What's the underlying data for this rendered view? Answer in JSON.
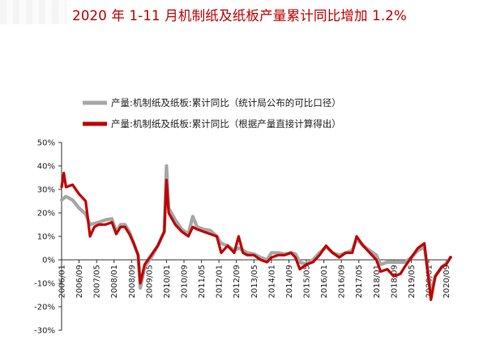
{
  "chart_data": {
    "type": "line",
    "title": "2020 年 1-11 月机制纸及纸板产量累计同比增加 1.2%",
    "ylim": [
      -30,
      50
    ],
    "yticks": [
      -30,
      -20,
      -10,
      0,
      10,
      20,
      30,
      40,
      50
    ],
    "ytick_labels": [
      "-30%",
      "-20%",
      "-10%",
      "0%",
      "10%",
      "20%",
      "30%",
      "40%",
      "50%"
    ],
    "xlim": [
      "2006-01",
      "2020-11"
    ],
    "xtick_labels": [
      "2006/01",
      "2006/09",
      "2007/05",
      "2008/01",
      "2008/09",
      "2009/05",
      "2010/01",
      "2010/09",
      "2011/05",
      "2012/01",
      "2012/09",
      "2013/05",
      "2014/01",
      "2014/09",
      "2015/05",
      "2016/01",
      "2016/09",
      "2017/05",
      "2018/01",
      "2018/09",
      "2019/05",
      "2020/01",
      "2020/09"
    ],
    "grid": false,
    "legend_position": "top-center",
    "series": [
      {
        "name": "产量:机制纸及纸板:累计同比（统计局公布的可比口径）",
        "color": "#a6a6a6",
        "points": [
          [
            "2006-01",
            25.5
          ],
          [
            "2006-03",
            27
          ],
          [
            "2006-06",
            25.5
          ],
          [
            "2006-09",
            22
          ],
          [
            "2006-12",
            19.5
          ],
          [
            "2007-02",
            15
          ],
          [
            "2007-04",
            15.5
          ],
          [
            "2007-06",
            16
          ],
          [
            "2007-09",
            17
          ],
          [
            "2007-12",
            17.5
          ],
          [
            "2008-02",
            12
          ],
          [
            "2008-04",
            15
          ],
          [
            "2008-06",
            15
          ],
          [
            "2008-08",
            12
          ],
          [
            "2008-10",
            7
          ],
          [
            "2008-12",
            2
          ],
          [
            "2009-01",
            -12
          ],
          [
            "2009-03",
            -3
          ],
          [
            "2009-06",
            1
          ],
          [
            "2009-09",
            6
          ],
          [
            "2009-11",
            10
          ],
          [
            "2009-12",
            12
          ],
          [
            "2010-01",
            40
          ],
          [
            "2010-02",
            22
          ],
          [
            "2010-05",
            17
          ],
          [
            "2010-08",
            13
          ],
          [
            "2010-11",
            11
          ],
          [
            "2011-01",
            18.5
          ],
          [
            "2011-03",
            14
          ],
          [
            "2011-06",
            13
          ],
          [
            "2011-09",
            12.5
          ],
          [
            "2011-12",
            10
          ],
          [
            "2012-02",
            7
          ],
          [
            "2012-05",
            6
          ],
          [
            "2012-08",
            4
          ],
          [
            "2012-10",
            5
          ],
          [
            "2012-12",
            4
          ],
          [
            "2013-02",
            3
          ],
          [
            "2013-05",
            2.5
          ],
          [
            "2013-08",
            1
          ],
          [
            "2013-11",
            0
          ],
          [
            "2014-01",
            3
          ],
          [
            "2014-04",
            3
          ],
          [
            "2014-07",
            2.5
          ],
          [
            "2014-10",
            3
          ],
          [
            "2014-12",
            2.5
          ],
          [
            "2015-02",
            -1
          ],
          [
            "2015-05",
            -2
          ],
          [
            "2015-08",
            0
          ],
          [
            "2015-11",
            3
          ],
          [
            "2016-02",
            5.5
          ],
          [
            "2016-05",
            3
          ],
          [
            "2016-08",
            2
          ],
          [
            "2016-11",
            3
          ],
          [
            "2017-02",
            4
          ],
          [
            "2017-04",
            9
          ],
          [
            "2017-07",
            6
          ],
          [
            "2017-10",
            4
          ],
          [
            "2018-01",
            2
          ],
          [
            "2018-03",
            -2
          ],
          [
            "2018-06",
            -1
          ],
          [
            "2018-09",
            -1
          ],
          [
            "2018-12",
            -1
          ],
          [
            "2019-02",
            -1
          ],
          [
            "2019-05",
            1
          ],
          [
            "2019-08",
            4
          ],
          [
            "2019-11",
            5.5
          ],
          [
            "2020-02",
            -14
          ],
          [
            "2020-04",
            -7
          ],
          [
            "2020-07",
            -3
          ],
          [
            "2020-09",
            -1.5
          ],
          [
            "2020-11",
            1
          ]
        ]
      },
      {
        "name": "产量:机制纸及纸板:累计同比（根据产量直接计算得出）",
        "color": "#c00000",
        "points": [
          [
            "2006-01",
            31
          ],
          [
            "2006-02",
            37
          ],
          [
            "2006-03",
            31
          ],
          [
            "2006-06",
            32
          ],
          [
            "2006-09",
            28
          ],
          [
            "2006-12",
            25
          ],
          [
            "2007-02",
            10
          ],
          [
            "2007-04",
            14
          ],
          [
            "2007-06",
            15
          ],
          [
            "2007-09",
            15
          ],
          [
            "2007-12",
            16
          ],
          [
            "2008-02",
            11
          ],
          [
            "2008-04",
            14
          ],
          [
            "2008-06",
            14
          ],
          [
            "2008-08",
            11
          ],
          [
            "2008-10",
            7
          ],
          [
            "2008-12",
            2
          ],
          [
            "2009-01",
            -10
          ],
          [
            "2009-03",
            -2
          ],
          [
            "2009-06",
            2
          ],
          [
            "2009-09",
            6
          ],
          [
            "2009-11",
            10
          ],
          [
            "2009-12",
            12
          ],
          [
            "2010-01",
            34
          ],
          [
            "2010-02",
            20
          ],
          [
            "2010-05",
            15
          ],
          [
            "2010-08",
            12
          ],
          [
            "2010-11",
            10
          ],
          [
            "2011-01",
            14
          ],
          [
            "2011-03",
            13
          ],
          [
            "2011-06",
            12
          ],
          [
            "2011-09",
            11
          ],
          [
            "2011-12",
            10
          ],
          [
            "2012-02",
            3
          ],
          [
            "2012-05",
            6
          ],
          [
            "2012-08",
            3
          ],
          [
            "2012-10",
            10
          ],
          [
            "2012-12",
            3
          ],
          [
            "2013-02",
            2
          ],
          [
            "2013-05",
            2
          ],
          [
            "2013-08",
            0
          ],
          [
            "2013-11",
            -1
          ],
          [
            "2014-01",
            1
          ],
          [
            "2014-04",
            2
          ],
          [
            "2014-07",
            2
          ],
          [
            "2014-10",
            3
          ],
          [
            "2014-12",
            1
          ],
          [
            "2015-02",
            -4
          ],
          [
            "2015-05",
            -2
          ],
          [
            "2015-08",
            -1
          ],
          [
            "2015-11",
            2
          ],
          [
            "2016-02",
            6
          ],
          [
            "2016-05",
            3
          ],
          [
            "2016-08",
            1
          ],
          [
            "2016-11",
            3
          ],
          [
            "2017-02",
            3
          ],
          [
            "2017-04",
            10
          ],
          [
            "2017-07",
            6
          ],
          [
            "2017-10",
            3
          ],
          [
            "2018-01",
            0
          ],
          [
            "2018-03",
            -5
          ],
          [
            "2018-06",
            -4
          ],
          [
            "2018-09",
            -7
          ],
          [
            "2018-12",
            -6
          ],
          [
            "2019-02",
            -3
          ],
          [
            "2019-05",
            1
          ],
          [
            "2019-08",
            5
          ],
          [
            "2019-11",
            7
          ],
          [
            "2020-02",
            -17
          ],
          [
            "2020-04",
            -7
          ],
          [
            "2020-07",
            -3
          ],
          [
            "2020-09",
            -2
          ],
          [
            "2020-11",
            1.2
          ]
        ]
      }
    ]
  }
}
